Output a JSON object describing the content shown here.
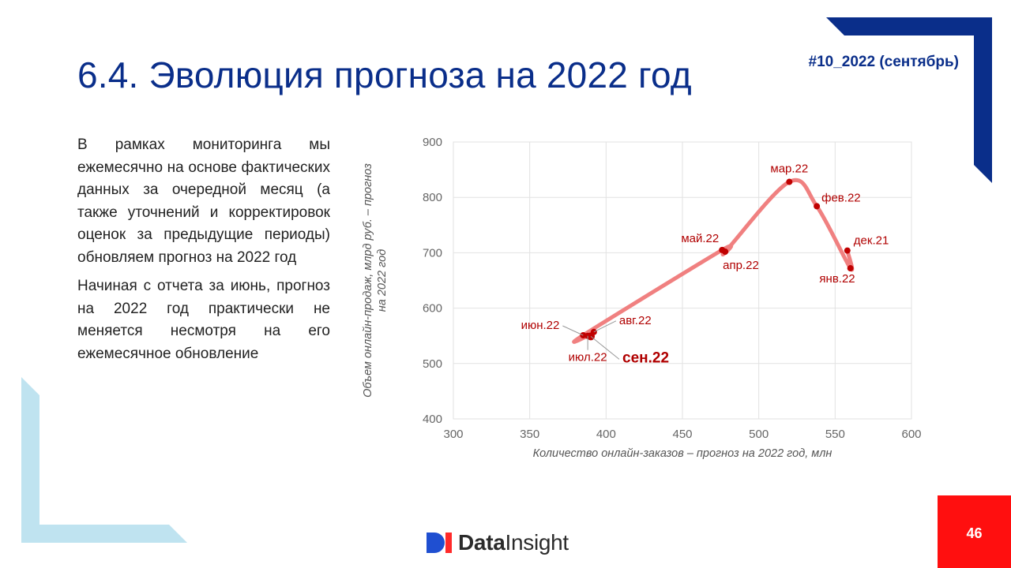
{
  "slide": {
    "title": "6.4. Эволюция прогноза на 2022 год",
    "tag": "#10_2022 (сентябрь)",
    "paragraphs": [
      "В рамках мониторинга мы ежемесячно на основе фактических данных за очередной месяц (а также уточнений и корректировок оценок за предыдущие периоды) обновляем прогноз на 2022 год",
      "Начиная с отчета за июнь, прогноз на 2022 год практически не меняется несмотря на его ежемесячное обновление"
    ],
    "page_number": "46",
    "logo_text_bold": "Data",
    "logo_text_thin": "Insight"
  },
  "colors": {
    "title": "#0a2e8a",
    "accent_blue": "#0a2e8a",
    "light_blue": "#bfe3f0",
    "red_box": "#ff0f0f",
    "point": "#c00000",
    "line": "#f08080",
    "label": "#b00000"
  },
  "chart_data": {
    "type": "scatter",
    "xlabel": "Количество онлайн-заказов – прогноз на 2022 год, млн",
    "ylabel": "Объем онлайн-продаж, млрд руб. – прогноз на 2022 год",
    "xlim": [
      300,
      600
    ],
    "ylim": [
      400,
      900
    ],
    "xticks": [
      300,
      350,
      400,
      450,
      500,
      550,
      600
    ],
    "yticks": [
      400,
      500,
      600,
      700,
      800,
      900
    ],
    "grid": true,
    "points": [
      {
        "label": "дек.21",
        "x": 558,
        "y": 704,
        "highlight": false
      },
      {
        "label": "янв.22",
        "x": 560,
        "y": 672,
        "highlight": false
      },
      {
        "label": "фев.22",
        "x": 538,
        "y": 784,
        "highlight": false
      },
      {
        "label": "мар.22",
        "x": 520,
        "y": 828,
        "highlight": false
      },
      {
        "label": "апр.22",
        "x": 478,
        "y": 702,
        "highlight": false
      },
      {
        "label": "май.22",
        "x": 476,
        "y": 705,
        "highlight": false
      },
      {
        "label": "июн.22",
        "x": 385,
        "y": 551,
        "highlight": false
      },
      {
        "label": "июл.22",
        "x": 388,
        "y": 550,
        "highlight": false
      },
      {
        "label": "авг.22",
        "x": 392,
        "y": 557,
        "highlight": false
      },
      {
        "label": "сен.22",
        "x": 390,
        "y": 549,
        "highlight": true
      }
    ]
  }
}
